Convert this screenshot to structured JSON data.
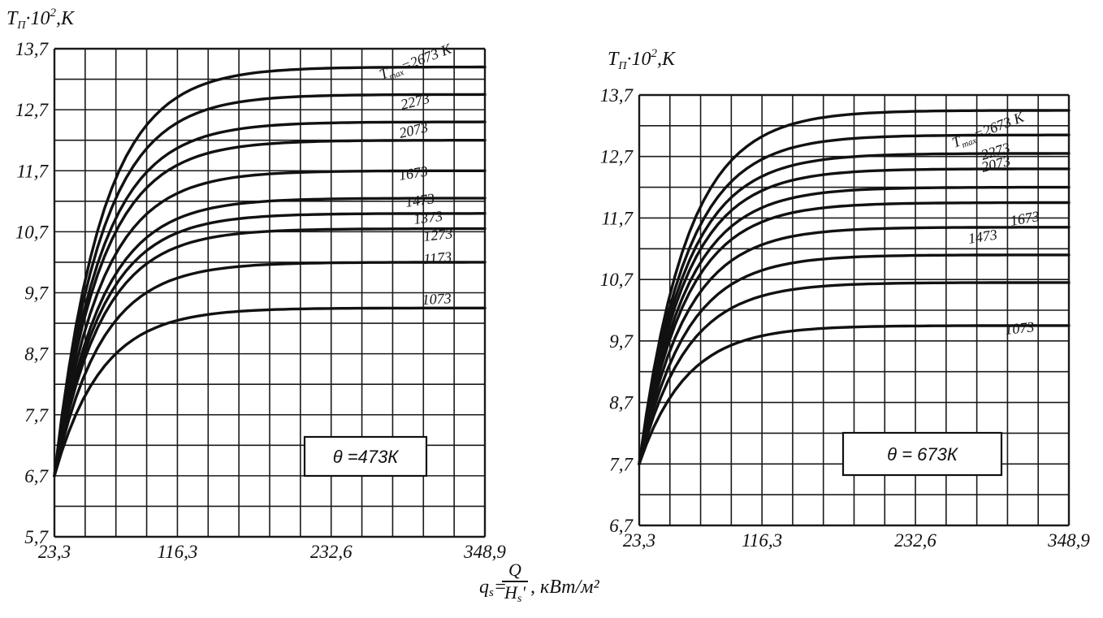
{
  "x_axis_label": {
    "q_symbol": "q",
    "q_sub": "s",
    "numerator": "Q",
    "denominator": "H",
    "denominator_sub": "s",
    "denominator_prime": "'",
    "unit": ", кВт/м²"
  },
  "colors": {
    "ink": "#111111",
    "grid": "#1a1a1a",
    "paper": "#ffffff"
  },
  "chart_data": [
    {
      "type": "line",
      "ylabel": "TП·10²,К",
      "ylabel_parts": {
        "T": "T",
        "T_sub": "П",
        "mid": "·10",
        "sup": "2",
        "unit": ",К"
      },
      "xlim": [
        23.3,
        348.9
      ],
      "ylim": [
        5.7,
        13.7
      ],
      "x_ticks": [
        23.3,
        116.3,
        232.6,
        348.9
      ],
      "x_tick_labels": [
        "23,3",
        "116,3",
        "232,6",
        "348,9"
      ],
      "y_ticks": [
        5.7,
        6.7,
        7.7,
        8.7,
        9.7,
        10.7,
        11.7,
        12.7,
        13.7
      ],
      "y_tick_labels": [
        "5,7",
        "6,7",
        "7,7",
        "8,7",
        "9,7",
        "10,7",
        "11,7",
        "12,7",
        "13,7"
      ],
      "grid": true,
      "annotation": "θ =473К",
      "start": [
        23.3,
        6.7
      ],
      "series": [
        {
          "name": "Tmax=2673 К",
          "end_y": 13.4
        },
        {
          "name": "2273",
          "end_y": 12.95
        },
        {
          "name": "2073",
          "end_y": 12.5
        },
        {
          "name": "",
          "end_y": 12.2
        },
        {
          "name": "1673",
          "end_y": 11.7
        },
        {
          "name": "1473",
          "end_y": 11.25
        },
        {
          "name": "1373",
          "end_y": 11.0
        },
        {
          "name": "1273",
          "end_y": 10.75
        },
        {
          "name": "1173",
          "end_y": 10.2
        },
        {
          "name": "1073",
          "end_y": 9.45
        }
      ]
    },
    {
      "type": "line",
      "ylabel": "TП·10²,К",
      "ylabel_parts": {
        "T": "T",
        "T_sub": "П",
        "mid": "·10",
        "sup": "2",
        "unit": ",К"
      },
      "xlim": [
        23.3,
        348.9
      ],
      "ylim": [
        6.7,
        13.7
      ],
      "x_ticks": [
        23.3,
        116.3,
        232.6,
        348.9
      ],
      "x_tick_labels": [
        "23,3",
        "116,3",
        "232,6",
        "348,9"
      ],
      "y_ticks": [
        6.7,
        7.7,
        8.7,
        9.7,
        10.7,
        11.7,
        12.7,
        13.7
      ],
      "y_tick_labels": [
        "6,7",
        "7,7",
        "8,7",
        "9,7",
        "10,7",
        "11,7",
        "12,7",
        "13,7"
      ],
      "grid": true,
      "annotation": "θ = 673К",
      "start": [
        23.3,
        7.7
      ],
      "series": [
        {
          "name": "Tmax=2673 К",
          "end_y": 13.45
        },
        {
          "name": "2273",
          "end_y": 13.05
        },
        {
          "name": "2073",
          "end_y": 12.75
        },
        {
          "name": "",
          "end_y": 12.5
        },
        {
          "name": "1673",
          "end_y": 12.2
        },
        {
          "name": "1473",
          "end_y": 11.95
        },
        {
          "name": "",
          "end_y": 11.55
        },
        {
          "name": "",
          "end_y": 11.1
        },
        {
          "name": "",
          "end_y": 10.65
        },
        {
          "name": "1073",
          "end_y": 9.95
        }
      ]
    }
  ]
}
